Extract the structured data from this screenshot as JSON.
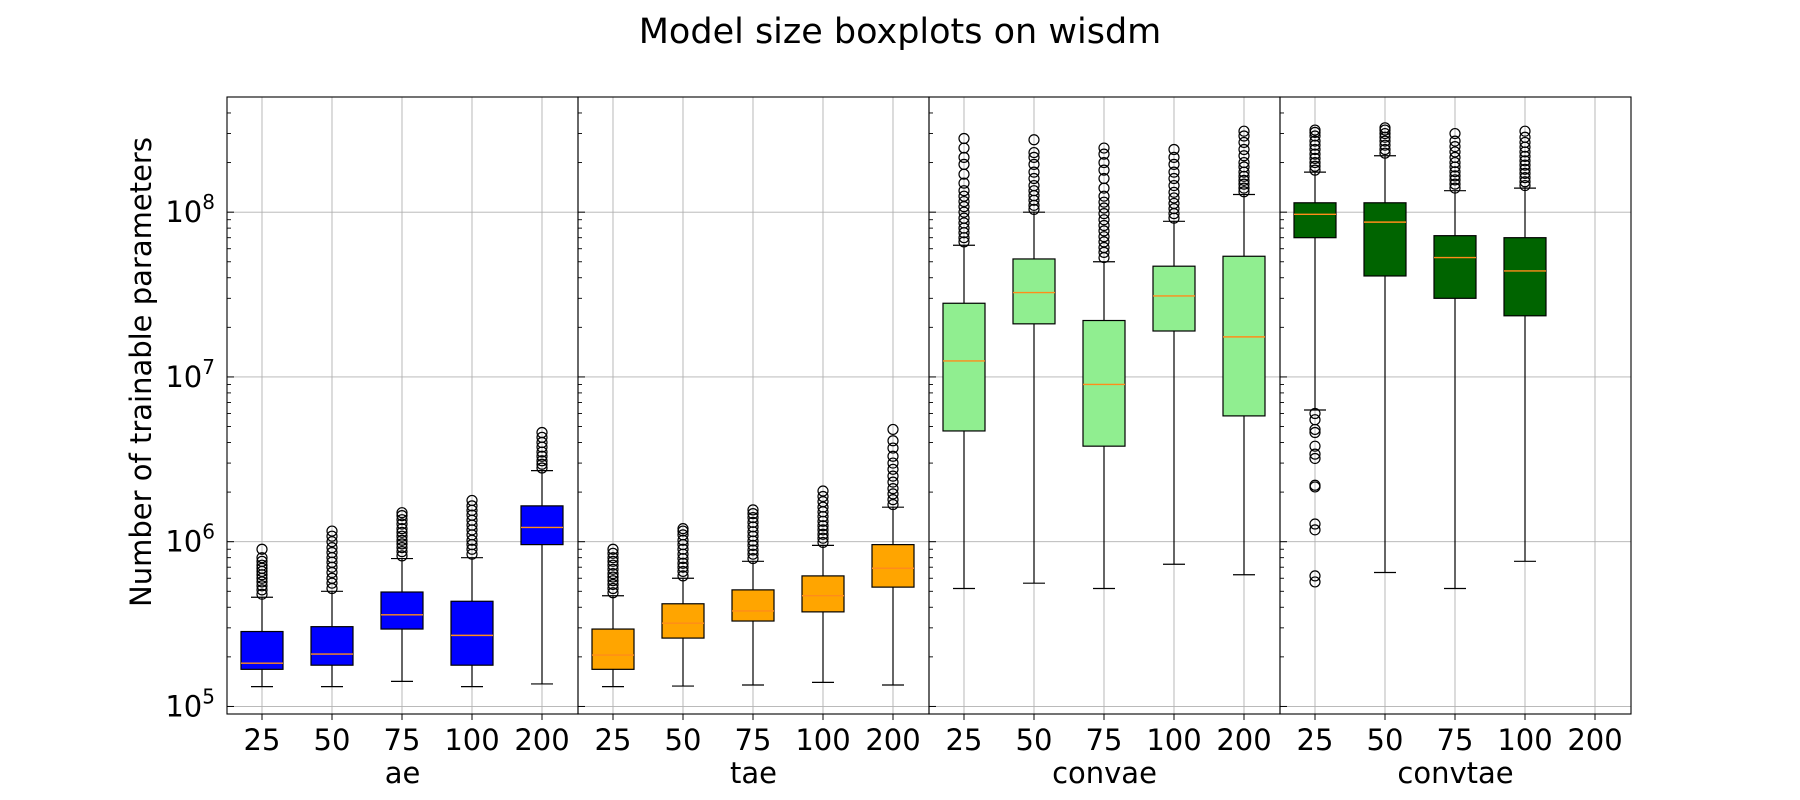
{
  "chart_data": {
    "type": "boxplot",
    "title": "Model size boxplots on wisdm",
    "ylabel": "Number of trainable parameters",
    "yscale": "log",
    "ylim": [
      90000,
      500000000
    ],
    "yticks": [
      {
        "value": 100000,
        "base": "10",
        "exp": "5"
      },
      {
        "value": 1000000,
        "base": "10",
        "exp": "6"
      },
      {
        "value": 10000000,
        "base": "10",
        "exp": "7"
      },
      {
        "value": 100000000,
        "base": "10",
        "exp": "8"
      }
    ],
    "grid": true,
    "categories": [
      "25",
      "50",
      "75",
      "100",
      "200"
    ],
    "panels": [
      {
        "name": "ae",
        "color": "#0000ff",
        "median_color": "#ff8c1a",
        "boxes": [
          {
            "cat": "25",
            "whislo": 132000,
            "q1": 168000,
            "med": 183000,
            "q3": 285000,
            "whishi": 460000,
            "fliers": [
              480000,
              510000,
              540000,
              570000,
              600000,
              630000,
              660000,
              690000,
              720000,
              760000,
              800000,
              900000
            ]
          },
          {
            "cat": "50",
            "whislo": 132000,
            "q1": 178000,
            "med": 208000,
            "q3": 305000,
            "whishi": 500000,
            "fliers": [
              520000,
              560000,
              600000,
              650000,
              700000,
              750000,
              800000,
              860000,
              920000,
              1000000,
              1080000,
              1160000
            ]
          },
          {
            "cat": "75",
            "whislo": 142000,
            "q1": 295000,
            "med": 360000,
            "q3": 495000,
            "whishi": 790000,
            "fliers": [
              820000,
              870000,
              920000,
              970000,
              1020000,
              1080000,
              1140000,
              1200000,
              1280000,
              1360000,
              1440000,
              1500000
            ]
          },
          {
            "cat": "100",
            "whislo": 132000,
            "q1": 178000,
            "med": 270000,
            "q3": 435000,
            "whishi": 800000,
            "fliers": [
              840000,
              900000,
              960000,
              1020000,
              1100000,
              1180000,
              1260000,
              1350000,
              1450000,
              1550000,
              1650000,
              1780000
            ]
          },
          {
            "cat": "200",
            "whislo": 137000,
            "q1": 960000,
            "med": 1220000,
            "q3": 1650000,
            "whishi": 2700000,
            "fliers": [
              2800000,
              2950000,
              3100000,
              3300000,
              3500000,
              3750000,
              4000000,
              4300000,
              4600000
            ]
          }
        ]
      },
      {
        "name": "tae",
        "color": "#ffa500",
        "median_color": "#ff8c1a",
        "boxes": [
          {
            "cat": "25",
            "whislo": 132000,
            "q1": 168000,
            "med": 205000,
            "q3": 295000,
            "whishi": 470000,
            "fliers": [
              490000,
              520000,
              550000,
              580000,
              610000,
              640000,
              680000,
              720000,
              760000,
              800000,
              850000,
              900000
            ]
          },
          {
            "cat": "50",
            "whislo": 133000,
            "q1": 260000,
            "med": 320000,
            "q3": 420000,
            "whishi": 600000,
            "fliers": [
              620000,
              660000,
              700000,
              740000,
              790000,
              840000,
              900000,
              960000,
              1020000,
              1100000,
              1160000,
              1200000
            ]
          },
          {
            "cat": "75",
            "whislo": 135000,
            "q1": 330000,
            "med": 380000,
            "q3": 510000,
            "whishi": 760000,
            "fliers": [
              790000,
              840000,
              890000,
              950000,
              1010000,
              1080000,
              1150000,
              1230000,
              1310000,
              1400000,
              1480000,
              1560000
            ]
          },
          {
            "cat": "100",
            "whislo": 140000,
            "q1": 375000,
            "med": 470000,
            "q3": 620000,
            "whishi": 950000,
            "fliers": [
              990000,
              1050000,
              1110000,
              1180000,
              1250000,
              1330000,
              1420000,
              1520000,
              1620000,
              1750000,
              1880000,
              2030000
            ]
          },
          {
            "cat": "200",
            "whislo": 135000,
            "q1": 530000,
            "med": 690000,
            "q3": 960000,
            "whishi": 1620000,
            "fliers": [
              1680000,
              1800000,
              1950000,
              2100000,
              2300000,
              2500000,
              2750000,
              3000000,
              3300000,
              3700000,
              4100000,
              4800000
            ]
          }
        ]
      },
      {
        "name": "convae",
        "color": "#90ee90",
        "median_color": "#ff8c1a",
        "boxes": [
          {
            "cat": "25",
            "whislo": 520000,
            "q1": 4700000,
            "med": 12500000,
            "q3": 28000000,
            "whishi": 63000000,
            "fliers": [
              66000000,
              70000000,
              75000000,
              80000000,
              86000000,
              92000000,
              100000000,
              108000000,
              116000000,
              125000000,
              135000000,
              150000000,
              170000000,
              195000000,
              215000000,
              245000000,
              280000000
            ]
          },
          {
            "cat": "50",
            "whislo": 560000,
            "q1": 21000000,
            "med": 32500000,
            "q3": 52000000,
            "whishi": 100000000,
            "fliers": [
              104000000,
              110000000,
              118000000,
              126000000,
              135000000,
              145000000,
              160000000,
              175000000,
              195000000,
              215000000,
              230000000,
              275000000
            ]
          },
          {
            "cat": "75",
            "whislo": 520000,
            "q1": 3800000,
            "med": 9000000,
            "q3": 22000000,
            "whishi": 50000000,
            "fliers": [
              53000000,
              57000000,
              61000000,
              66000000,
              71000000,
              77000000,
              83000000,
              90000000,
              98000000,
              106000000,
              115000000,
              125000000,
              140000000,
              160000000,
              180000000,
              200000000,
              225000000,
              245000000
            ]
          },
          {
            "cat": "100",
            "whislo": 730000,
            "q1": 19000000,
            "med": 31000000,
            "q3": 47000000,
            "whishi": 88000000,
            "fliers": [
              92000000,
              98000000,
              105000000,
              113000000,
              122000000,
              132000000,
              145000000,
              160000000,
              175000000,
              195000000,
              215000000,
              240000000
            ]
          },
          {
            "cat": "200",
            "whislo": 630000,
            "q1": 5800000,
            "med": 17500000,
            "q3": 54000000,
            "whishi": 128000000,
            "fliers": [
              133000000,
              140000000,
              148000000,
              156000000,
              165000000,
              175000000,
              188000000,
              200000000,
              220000000,
              240000000,
              265000000,
              290000000,
              310000000
            ]
          }
        ]
      },
      {
        "name": "convtae",
        "color": "#006400",
        "median_color": "#ff8c1a",
        "boxes": [
          {
            "cat": "25",
            "whislo": 6300000,
            "q1": 70000000,
            "med": 97000000,
            "q3": 114000000,
            "whishi": 175000000,
            "fliers": [
              570000,
              620000,
              1180000,
              1280000,
              2150000,
              2200000,
              3200000,
              3400000,
              3800000,
              4600000,
              4800000,
              5500000,
              6000000,
              180000000,
              190000000,
              200000000,
              212000000,
              225000000,
              240000000,
              255000000,
              270000000,
              290000000,
              305000000,
              315000000
            ]
          },
          {
            "cat": "50",
            "whislo": 650000,
            "q1": 41000000,
            "med": 87000000,
            "q3": 114000000,
            "whishi": 220000000,
            "fliers": [
              228000000,
              240000000,
              255000000,
              270000000,
              285000000,
              300000000,
              315000000,
              325000000
            ]
          },
          {
            "cat": "75",
            "whislo": 520000,
            "q1": 30000000,
            "med": 53000000,
            "q3": 72000000,
            "whishi": 135000000,
            "fliers": [
              140000000,
              148000000,
              157000000,
              166000000,
              176000000,
              188000000,
              200000000,
              215000000,
              232000000,
              250000000,
              270000000,
              300000000
            ]
          },
          {
            "cat": "100",
            "whislo": 760000,
            "q1": 23500000,
            "med": 44000000,
            "q3": 70000000,
            "whishi": 140000000,
            "fliers": [
              145000000,
              153000000,
              162000000,
              172000000,
              182000000,
              193000000,
              205000000,
              218000000,
              232000000,
              248000000,
              265000000,
              285000000,
              310000000
            ]
          }
        ]
      }
    ]
  }
}
